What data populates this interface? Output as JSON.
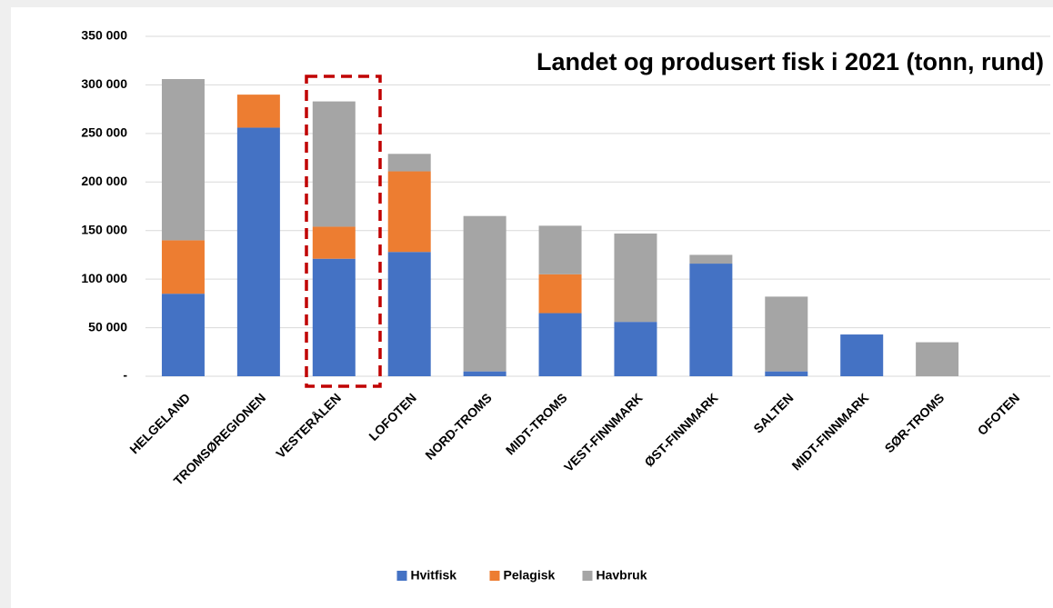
{
  "chart_data": {
    "type": "stacked_bar",
    "title": "Landet og produsert fisk i 2021 (tonn, rund)",
    "categories": [
      "HELGELAND",
      "TROMSØREGIONEN",
      "VESTERÅLEN",
      "LOFOTEN",
      "NORD-TROMS",
      "MIDT-TROMS",
      "VEST-FINNMARK",
      "ØST-FINNMARK",
      "SALTEN",
      "MIDT-FINNMARK",
      "SØR-TROMS",
      "OFOTEN"
    ],
    "series": [
      {
        "name": "Hvitfisk",
        "color": "#4472c4",
        "values": [
          85000,
          256000,
          121000,
          128000,
          5000,
          65000,
          56000,
          116000,
          5000,
          43000,
          0,
          0
        ]
      },
      {
        "name": "Pelagisk",
        "color": "#ed7d31",
        "values": [
          55000,
          34000,
          33000,
          83000,
          0,
          40000,
          0,
          0,
          0,
          0,
          0,
          0
        ]
      },
      {
        "name": "Havbruk",
        "color": "#a5a5a5",
        "values": [
          166000,
          0,
          129000,
          18000,
          160000,
          50000,
          91000,
          9000,
          77000,
          0,
          35000,
          0
        ]
      }
    ],
    "ylim": [
      0,
      350000
    ],
    "yticks": [
      {
        "value": 0,
        "label": "-"
      },
      {
        "value": 50000,
        "label": "50 000"
      },
      {
        "value": 100000,
        "label": "100 000"
      },
      {
        "value": 150000,
        "label": "150 000"
      },
      {
        "value": 200000,
        "label": "200 000"
      },
      {
        "value": 250000,
        "label": "250 000"
      },
      {
        "value": 300000,
        "label": "300 000"
      },
      {
        "value": 350000,
        "label": "350 000"
      }
    ],
    "grid": true,
    "legend": "bottom"
  }
}
